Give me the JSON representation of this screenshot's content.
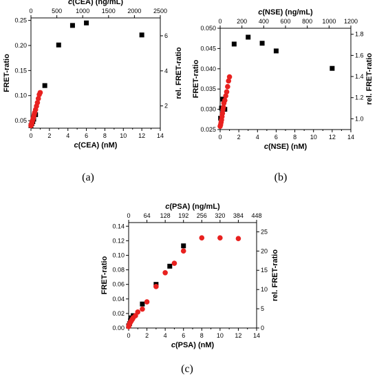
{
  "chart_data": [
    {
      "type": "scatter",
      "panel_label": "(a)",
      "xlabel": "c(CEA) (nM)",
      "ylabel": "FRET-ratio",
      "x2label": "c(CEA) (ng/mL)",
      "y2label": "rel. FRET-ratio",
      "xlim": [
        0,
        14
      ],
      "ylim": [
        0.035,
        0.255
      ],
      "x2lim": [
        0,
        2500
      ],
      "y2lim": [
        0.73,
        7.02
      ],
      "xticks": [
        "0",
        "2",
        "4",
        "6",
        "8",
        "10",
        "12",
        "14"
      ],
      "yticks": [
        "0.05",
        "0.10",
        "0.15",
        "0.20",
        "0.25"
      ],
      "x2ticks": [
        "0",
        "500",
        "1000",
        "1500",
        "2000",
        "2500"
      ],
      "y2ticks": [
        "2",
        "4",
        "6"
      ],
      "series": [
        {
          "color": "#000000",
          "marker": "square",
          "x": [
            0,
            0.1,
            0.2,
            0.3,
            0.5,
            1.5,
            3,
            4.5,
            6,
            12
          ],
          "y": [
            0.04,
            0.044,
            0.048,
            0.053,
            0.062,
            0.12,
            0.201,
            0.24,
            0.245,
            0.221
          ]
        },
        {
          "color": "#e8211f",
          "marker": "circle",
          "x": [
            0,
            0.02,
            0.04,
            0.06,
            0.08,
            0.1,
            0.15,
            0.2,
            0.25,
            0.3,
            0.35,
            0.4,
            0.5,
            0.6,
            0.7,
            0.8,
            0.9,
            1.0
          ],
          "y": [
            0.04,
            0.041,
            0.042,
            0.043,
            0.044,
            0.046,
            0.049,
            0.052,
            0.055,
            0.058,
            0.062,
            0.066,
            0.072,
            0.079,
            0.086,
            0.094,
            0.102,
            0.106
          ]
        }
      ]
    },
    {
      "type": "scatter",
      "panel_label": "(b)",
      "xlabel": "c(NSE) (nM)",
      "ylabel": "FRET-ratio",
      "x2label": "c(NSE) (ng/mL)",
      "y2label": "rel. FRET-ratio",
      "xlim": [
        0,
        14
      ],
      "ylim": [
        0.025,
        0.05
      ],
      "x2lim": [
        0,
        1200
      ],
      "y2lim": [
        0.898,
        1.857
      ],
      "xticks": [
        "0",
        "2",
        "4",
        "6",
        "8",
        "10",
        "12",
        "14"
      ],
      "yticks": [
        "0.025",
        "0.030",
        "0.035",
        "0.040",
        "0.045",
        "0.050"
      ],
      "x2ticks": [
        "0",
        "200",
        "400",
        "600",
        "800",
        "1000",
        "1200"
      ],
      "y2ticks": [
        "1.0",
        "1.2",
        "1.4",
        "1.6",
        "1.8"
      ],
      "series": [
        {
          "color": "#000000",
          "marker": "square",
          "x": [
            0.05,
            0.15,
            0.3,
            0.5,
            1.5,
            3,
            4.5,
            6,
            12
          ],
          "y": [
            0.0278,
            0.0303,
            0.0325,
            0.03,
            0.0461,
            0.0478,
            0.0463,
            0.0444,
            0.0401
          ]
        },
        {
          "color": "#e8211f",
          "marker": "circle",
          "x": [
            0,
            0.05,
            0.1,
            0.15,
            0.2,
            0.25,
            0.3,
            0.35,
            0.4,
            0.5,
            0.6,
            0.7,
            0.8,
            0.9,
            1.0
          ],
          "y": [
            0.0258,
            0.0262,
            0.0268,
            0.0274,
            0.0282,
            0.029,
            0.0299,
            0.0305,
            0.0315,
            0.0322,
            0.0333,
            0.0343,
            0.0356,
            0.037,
            0.038
          ]
        }
      ]
    },
    {
      "type": "scatter",
      "panel_label": "(c)",
      "xlabel": "c(PSA) (nM)",
      "ylabel": "FRET-ratio",
      "x2label": "c(PSA) (ng/mL)",
      "y2label": "rel. FRET-ratio",
      "xlim": [
        0,
        14
      ],
      "ylim": [
        0,
        0.145
      ],
      "x2lim": [
        0,
        448
      ],
      "y2lim": [
        0,
        27.4
      ],
      "xticks": [
        "0",
        "2",
        "4",
        "6",
        "8",
        "10",
        "12",
        "14"
      ],
      "yticks": [
        "0.00",
        "0.02",
        "0.04",
        "0.06",
        "0.08",
        "0.10",
        "0.12",
        "0.14"
      ],
      "x2ticks": [
        "0",
        "64",
        "128",
        "192",
        "256",
        "320",
        "384",
        "448"
      ],
      "y2ticks": [
        "0",
        "5",
        "10",
        "15",
        "20",
        "25"
      ],
      "series": [
        {
          "color": "#000000",
          "marker": "square",
          "x": [
            0,
            0.1,
            0.2,
            0.3,
            0.5,
            1.5,
            3,
            4.5,
            6
          ],
          "y": [
            0.003,
            0.006,
            0.01,
            0.014,
            0.017,
            0.033,
            0.06,
            0.085,
            0.113
          ]
        },
        {
          "color": "#e8211f",
          "marker": "circle",
          "x": [
            0,
            0.05,
            0.1,
            0.15,
            0.2,
            0.3,
            0.4,
            0.5,
            0.75,
            1,
            1.5,
            2,
            3,
            4,
            5,
            6,
            8,
            10,
            12
          ],
          "y": [
            0.002,
            0.004,
            0.006,
            0.007,
            0.008,
            0.01,
            0.012,
            0.014,
            0.017,
            0.022,
            0.026,
            0.036,
            0.057,
            0.076,
            0.089,
            0.106,
            0.124,
            0.124,
            0.123
          ]
        }
      ]
    }
  ]
}
